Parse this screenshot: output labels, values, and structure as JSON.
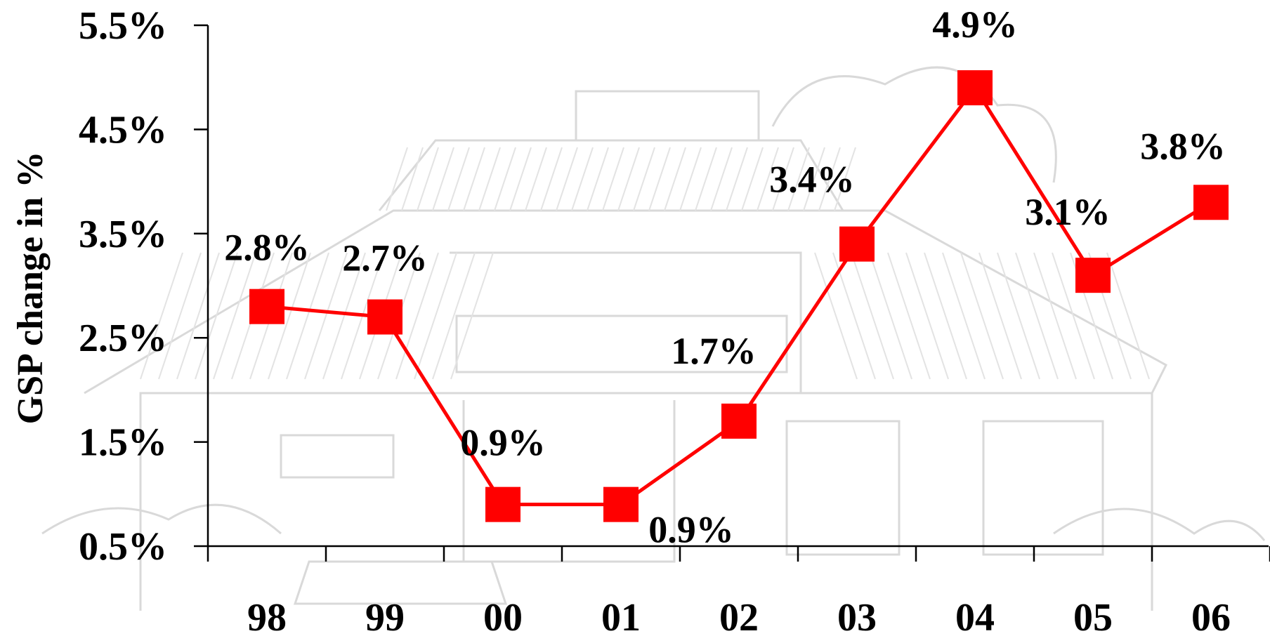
{
  "chart_data": {
    "type": "line",
    "title": "",
    "xlabel": "",
    "ylabel": "GSP change in %",
    "categories": [
      "98",
      "99",
      "00",
      "01",
      "02",
      "03",
      "04",
      "05",
      "06"
    ],
    "series": [
      {
        "values": [
          2.8,
          2.7,
          0.9,
          0.9,
          1.7,
          3.4,
          4.9,
          3.1,
          3.8
        ],
        "data_labels": [
          "2.8%",
          "2.7%",
          "0.9%",
          "0.9%",
          "1.7%",
          "3.4%",
          "4.9%",
          "3.1%",
          "3.8%"
        ],
        "color": "#ff0000",
        "marker": "square"
      }
    ],
    "ylim": [
      0.5,
      5.5
    ],
    "y_ticks": [
      0.5,
      1.5,
      2.5,
      3.5,
      4.5,
      5.5
    ],
    "y_tick_labels": [
      "0.5%",
      "1.5%",
      "2.5%",
      "3.5%",
      "4.5%",
      "5.5%"
    ],
    "grid": false,
    "legend": "none",
    "background": "faint line-drawing illustration of a house behind the plot"
  }
}
